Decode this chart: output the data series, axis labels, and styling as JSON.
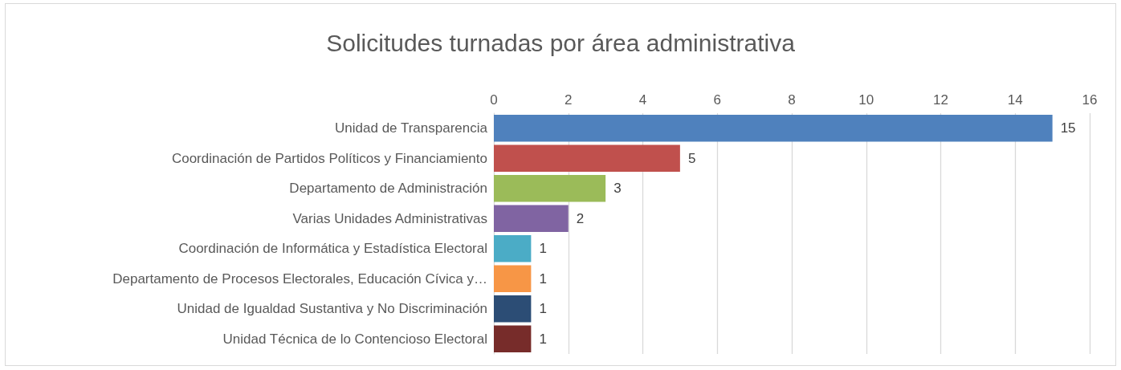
{
  "chart_data": {
    "type": "bar",
    "orientation": "horizontal",
    "title": "Solicitudes turnadas por área administrativa",
    "categories": [
      "Unidad de Transparencia",
      "Coordinación de Partidos Políticos y Financiamiento",
      "Departamento de Administración",
      "Varias Unidades Administrativas",
      "Coordinación de Informática y Estadística Electoral",
      "Departamento de Procesos Electorales, Educación Cívica y…",
      "Unidad de Igualdad Sustantiva y No Discriminación",
      "Unidad Técnica de lo Contencioso Electoral"
    ],
    "values": [
      15,
      5,
      3,
      2,
      1,
      1,
      1,
      1
    ],
    "colors": [
      "#4f81bd",
      "#c0504d",
      "#9bbb59",
      "#8064a2",
      "#4bacc6",
      "#f79646",
      "#2c4d75",
      "#772c2a"
    ],
    "xlim": [
      0,
      16
    ],
    "xticks": [
      0,
      2,
      4,
      6,
      8,
      10,
      12,
      14,
      16
    ],
    "grid": true,
    "data_labels": true
  }
}
